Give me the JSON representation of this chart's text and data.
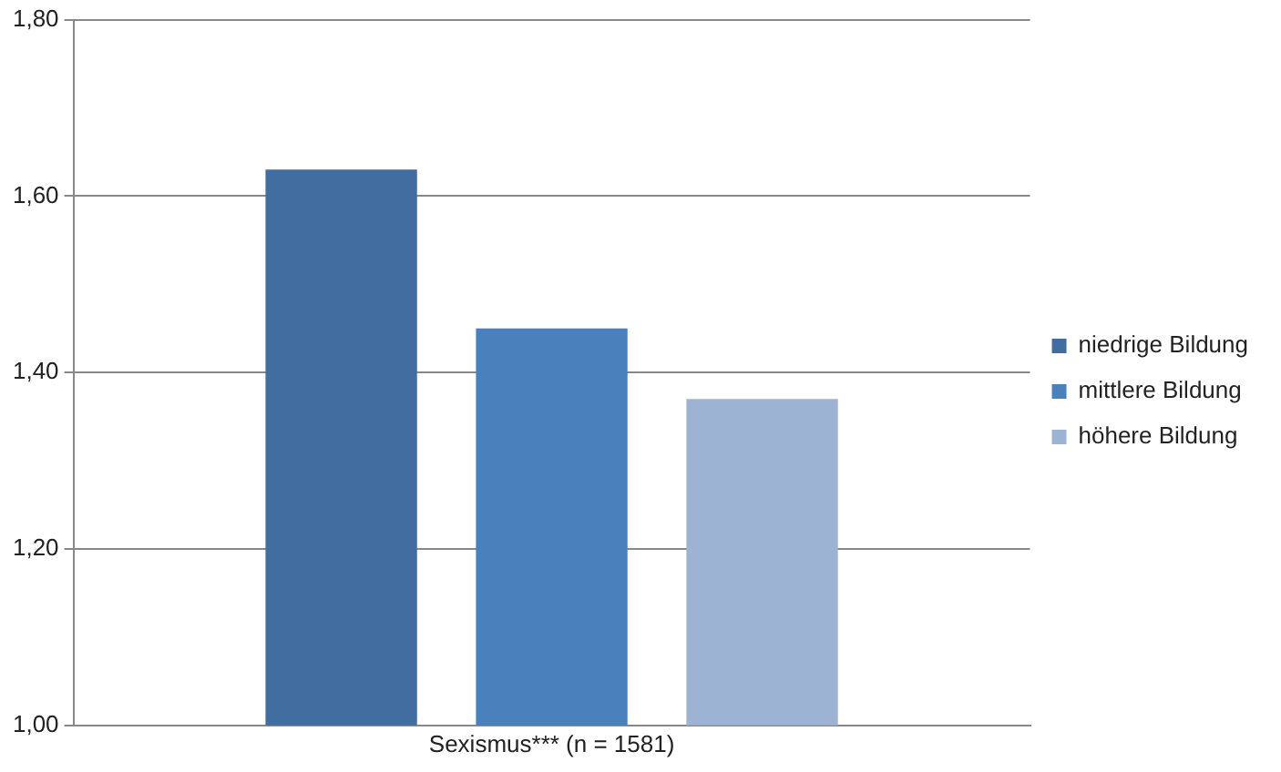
{
  "chart_data": {
    "type": "bar",
    "categories": [
      "Sexismus*** (n = 1581)"
    ],
    "series": [
      {
        "name": "niedrige Bildung",
        "color": "#426da0",
        "values": [
          1.63
        ]
      },
      {
        "name": "mittlere Bildung",
        "color": "#4a81bd",
        "values": [
          1.45
        ]
      },
      {
        "name": "höhere Bildung",
        "color": "#9db3d3",
        "values": [
          1.37
        ]
      }
    ],
    "ylim": [
      1.0,
      1.8
    ],
    "yticks": [
      {
        "value": 1.0,
        "label": "1,00"
      },
      {
        "value": 1.2,
        "label": "1,20"
      },
      {
        "value": 1.4,
        "label": "1,40"
      },
      {
        "value": 1.6,
        "label": "1,60"
      },
      {
        "value": 1.8,
        "label": "1,80"
      }
    ],
    "grid": "y",
    "legend": "right"
  }
}
